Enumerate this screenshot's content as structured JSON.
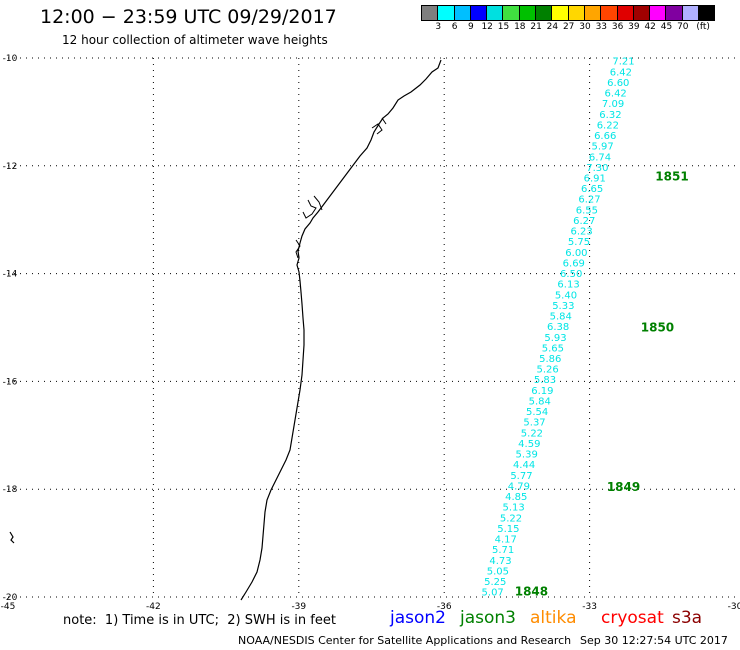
{
  "header": {
    "title": "12:00 − 23:59 UTC 09/29/2017",
    "subtitle": "12 hour collection of altimeter wave heights"
  },
  "colorbar": {
    "colors": [
      "#7f7f7f",
      "#00ffff",
      "#00bfff",
      "#0000ff",
      "#00e0e0",
      "#40e040",
      "#00c000",
      "#008000",
      "#ffff00",
      "#ffd700",
      "#ffa500",
      "#ff4500",
      "#e00000",
      "#a00000",
      "#ff00ff",
      "#8000a0",
      "#b0b0ff",
      "#000000"
    ],
    "labels": [
      "3",
      "6",
      "9",
      "12",
      "15",
      "18",
      "21",
      "24",
      "27",
      "30",
      "33",
      "36",
      "39",
      "42",
      "45",
      "70",
      "(ft)"
    ]
  },
  "axes": {
    "lon_ticks": [
      "-45",
      "-42",
      "-39",
      "-36",
      "-33",
      "-30"
    ],
    "lat_ticks": [
      "-10",
      "-12",
      "-14",
      "-16",
      "-18",
      "-20"
    ],
    "xlim": [
      -45,
      -30
    ],
    "ylim": [
      -20,
      -10
    ],
    "grid": true
  },
  "track": {
    "color": "#00e5e5",
    "values": [
      "7.21",
      "6.42",
      "6.60",
      "6.42",
      "7.09",
      "6.32",
      "6.22",
      "6.66",
      "5.97",
      "6.74",
      "7.30",
      "6.91",
      "6.65",
      "6.27",
      "6.55",
      "6.27",
      "6.23",
      "5.75",
      "6.00",
      "6.69",
      "6.50",
      "6.13",
      "5.40",
      "5.33",
      "5.84",
      "6.38",
      "5.93",
      "5.65",
      "5.86",
      "5.26",
      "5.83",
      "6.19",
      "5.84",
      "5.54",
      "5.37",
      "5.22",
      "4.59",
      "5.39",
      "4.44",
      "5.77",
      "4.79",
      "4.85",
      "5.13",
      "5.22",
      "5.15",
      "4.17",
      "5.71",
      "4.73",
      "5.05",
      "5.25",
      "5.07"
    ],
    "start": {
      "lon": -32.3,
      "lat": -10.05
    },
    "end": {
      "lon": -35.0,
      "lat": -19.9
    }
  },
  "time_labels": [
    {
      "text": "1851",
      "lon": -31.3,
      "lat": -12.2
    },
    {
      "text": "1850",
      "lon": -31.6,
      "lat": -15.0
    },
    {
      "text": "1849",
      "lon": -32.3,
      "lat": -17.96
    },
    {
      "text": "1848",
      "lon": -34.2,
      "lat": -19.9
    }
  ],
  "time_label_color": "#008000",
  "note": "note:  1) Time is in UTC;  2) SWH is in feet",
  "satellites": [
    {
      "name": "jason2",
      "color": "#0000ff"
    },
    {
      "name": "jason3",
      "color": "#008000"
    },
    {
      "name": "altika",
      "color": "#ff8c00"
    },
    {
      "name": "cryosat",
      "color": "#ff0000"
    },
    {
      "name": "s3a",
      "color": "#8b0000"
    }
  ],
  "footer": {
    "credit": "NOAA/NESDIS Center for Satellite Applications and Research",
    "timestamp": "Sep 30 12:27:54 UTC 2017"
  }
}
